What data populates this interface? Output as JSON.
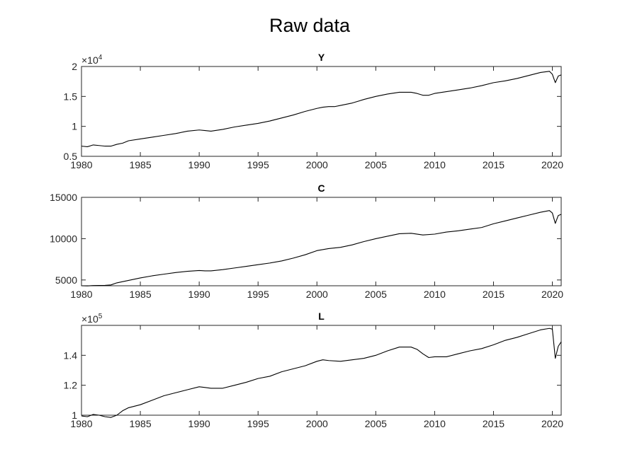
{
  "figure_title": "Raw data",
  "chart_data": [
    {
      "type": "line",
      "title": "Y",
      "xlabel": "",
      "ylabel": "",
      "exponent_label": "×10",
      "exponent_power": "4",
      "xlim": [
        1980,
        2020.75
      ],
      "ylim": [
        0.5,
        2.0
      ],
      "x_ticks": [
        1980,
        1985,
        1990,
        1995,
        2000,
        2005,
        2010,
        2015,
        2020
      ],
      "y_ticks": [
        0.5,
        1,
        1.5,
        2
      ],
      "y_tick_labels": [
        "0.5",
        "1",
        "1.5",
        "2"
      ],
      "x_tick_labels": [
        "1980",
        "1985",
        "1990",
        "1995",
        "2000",
        "2005",
        "2010",
        "2015",
        "2020"
      ],
      "series": [
        {
          "x": [
            1980,
            1980.5,
            1981,
            1981.5,
            1982,
            1982.5,
            1983,
            1983.5,
            1984,
            1985,
            1986,
            1987,
            1988,
            1989,
            1990,
            1990.5,
            1991,
            1992,
            1993,
            1994,
            1995,
            1996,
            1997,
            1998,
            1999,
            2000,
            2000.5,
            2001,
            2001.5,
            2002,
            2003,
            2004,
            2005,
            2006,
            2007,
            2008,
            2008.5,
            2009,
            2009.5,
            2010,
            2011,
            2012,
            2013,
            2014,
            2015,
            2016,
            2017,
            2018,
            2019,
            2019.75,
            2020,
            2020.25,
            2020.5,
            2020.75
          ],
          "y": [
            0.67,
            0.66,
            0.69,
            0.68,
            0.67,
            0.67,
            0.7,
            0.72,
            0.76,
            0.79,
            0.82,
            0.85,
            0.88,
            0.92,
            0.94,
            0.93,
            0.92,
            0.95,
            0.99,
            1.02,
            1.05,
            1.09,
            1.14,
            1.19,
            1.25,
            1.3,
            1.32,
            1.33,
            1.33,
            1.35,
            1.39,
            1.45,
            1.5,
            1.54,
            1.57,
            1.57,
            1.55,
            1.52,
            1.52,
            1.55,
            1.58,
            1.61,
            1.64,
            1.68,
            1.73,
            1.76,
            1.8,
            1.85,
            1.9,
            1.92,
            1.87,
            1.73,
            1.84,
            1.86
          ]
        }
      ]
    },
    {
      "type": "line",
      "title": "C",
      "xlabel": "",
      "ylabel": "",
      "xlim": [
        1980,
        2020.75
      ],
      "ylim": [
        4300,
        15000
      ],
      "x_ticks": [
        1980,
        1985,
        1990,
        1995,
        2000,
        2005,
        2010,
        2015,
        2020
      ],
      "y_ticks": [
        5000,
        10000,
        15000
      ],
      "y_tick_labels": [
        "5000",
        "10000",
        "15000"
      ],
      "x_tick_labels": [
        "1980",
        "1985",
        "1990",
        "1995",
        "2000",
        "2005",
        "2010",
        "2015",
        "2020"
      ],
      "series": [
        {
          "x": [
            1980,
            1980.5,
            1981,
            1982,
            1982.5,
            1983,
            1984,
            1985,
            1986,
            1987,
            1988,
            1989,
            1990,
            1990.5,
            1991,
            1992,
            1993,
            1994,
            1995,
            1996,
            1997,
            1998,
            1999,
            2000,
            2001,
            2002,
            2003,
            2004,
            2005,
            2006,
            2007,
            2008,
            2009,
            2010,
            2011,
            2012,
            2013,
            2014,
            2015,
            2016,
            2017,
            2018,
            2019,
            2019.75,
            2020,
            2020.25,
            2020.5,
            2020.75
          ],
          "y": [
            4300,
            4280,
            4330,
            4350,
            4400,
            4650,
            4950,
            5250,
            5500,
            5700,
            5900,
            6050,
            6150,
            6100,
            6100,
            6250,
            6450,
            6650,
            6850,
            7050,
            7300,
            7650,
            8050,
            8550,
            8800,
            8950,
            9250,
            9650,
            10000,
            10300,
            10600,
            10650,
            10450,
            10550,
            10800,
            10950,
            11150,
            11350,
            11800,
            12150,
            12500,
            12850,
            13200,
            13400,
            13100,
            11850,
            12800,
            12950
          ]
        }
      ]
    },
    {
      "type": "line",
      "title": "L",
      "xlabel": "",
      "ylabel": "",
      "exponent_label": "×10",
      "exponent_power": "5",
      "xlim": [
        1980,
        2020.75
      ],
      "ylim": [
        1.0,
        1.6
      ],
      "x_ticks": [
        1980,
        1985,
        1990,
        1995,
        2000,
        2005,
        2010,
        2015,
        2020
      ],
      "y_ticks": [
        1,
        1.2,
        1.4
      ],
      "y_tick_labels": [
        "1",
        "1.2",
        "1.4"
      ],
      "x_tick_labels": [
        "1980",
        "1985",
        "1990",
        "1995",
        "2000",
        "2005",
        "2010",
        "2015",
        "2020"
      ],
      "series": [
        {
          "x": [
            1980,
            1980.5,
            1981,
            1981.5,
            1982,
            1982.5,
            1983,
            1983.5,
            1984,
            1985,
            1986,
            1987,
            1988,
            1989,
            1990,
            1990.5,
            1991,
            1992,
            1993,
            1994,
            1995,
            1996,
            1997,
            1998,
            1999,
            2000,
            2000.5,
            2001,
            2002,
            2003,
            2004,
            2005,
            2006,
            2007,
            2008,
            2008.5,
            2009,
            2009.5,
            2010,
            2011,
            2012,
            2013,
            2014,
            2015,
            2016,
            2017,
            2018,
            2019,
            2019.75,
            2020,
            2020.25,
            2020.5,
            2020.75
          ],
          "y": [
            0.995,
            0.99,
            1.005,
            1.0,
            0.99,
            0.985,
            1.0,
            1.03,
            1.05,
            1.07,
            1.1,
            1.13,
            1.15,
            1.17,
            1.19,
            1.185,
            1.18,
            1.18,
            1.2,
            1.22,
            1.245,
            1.26,
            1.29,
            1.31,
            1.33,
            1.36,
            1.37,
            1.365,
            1.36,
            1.37,
            1.38,
            1.4,
            1.43,
            1.455,
            1.455,
            1.44,
            1.41,
            1.385,
            1.39,
            1.39,
            1.41,
            1.43,
            1.445,
            1.47,
            1.5,
            1.52,
            1.545,
            1.57,
            1.58,
            1.575,
            1.38,
            1.46,
            1.49
          ]
        }
      ]
    }
  ]
}
